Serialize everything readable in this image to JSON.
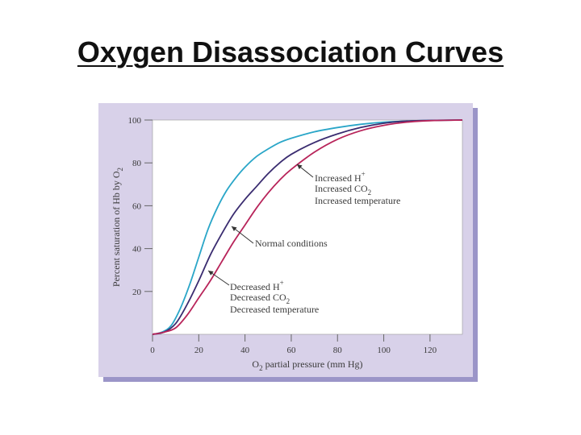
{
  "slide": {
    "title": "Oxygen Disassociation Curves"
  },
  "chart_data": {
    "type": "line",
    "xlabel_main": "O",
    "xlabel_sub": "2",
    "xlabel_rest": " partial pressure (mm Hg)",
    "ylabel_main": "Percent saturation of Hb by O",
    "ylabel_sub": "2",
    "xlim": [
      0,
      134
    ],
    "ylim": [
      0,
      100
    ],
    "xticks": [
      0,
      20,
      40,
      60,
      80,
      100,
      120
    ],
    "yticks": [
      20,
      40,
      60,
      80,
      100
    ],
    "grid": false,
    "series": [
      {
        "key": "left",
        "color": "#2aa6c8",
        "x": [
          0,
          4,
          8,
          12,
          16,
          20,
          24,
          28,
          32,
          36,
          40,
          45,
          50,
          55,
          60,
          70,
          80,
          90,
          100,
          110,
          120,
          134
        ],
        "y": [
          0,
          1,
          4,
          12,
          23,
          36,
          49,
          59,
          67,
          73,
          78,
          83,
          86.5,
          89.5,
          91.5,
          94.5,
          96.5,
          98,
          99,
          99.5,
          99.8,
          100
        ]
      },
      {
        "key": "normal",
        "color": "#3a2c70",
        "x": [
          0,
          5,
          10,
          15,
          20,
          25,
          30,
          35,
          40,
          45,
          50,
          55,
          60,
          70,
          80,
          90,
          100,
          110,
          120,
          134
        ],
        "y": [
          0,
          1,
          5,
          14,
          25,
          37,
          47,
          56,
          63,
          69,
          75,
          80,
          84,
          89.5,
          93.5,
          96.5,
          98.5,
          99.5,
          99.8,
          100
        ]
      },
      {
        "key": "right",
        "color": "#b8245a",
        "x": [
          0,
          5,
          10,
          15,
          20,
          25,
          30,
          35,
          40,
          45,
          50,
          55,
          60,
          70,
          80,
          90,
          100,
          110,
          120,
          134
        ],
        "y": [
          0,
          1,
          3,
          9,
          17,
          25,
          34,
          43,
          51,
          59,
          66,
          72,
          77,
          85,
          91,
          95,
          97.5,
          99,
          99.7,
          100
        ]
      }
    ],
    "annotations": {
      "increased": {
        "l1_main": "Increased H",
        "l1_sup": "+",
        "l2_main": "Increased CO",
        "l2_sub": "2",
        "l3": "Increased temperature"
      },
      "normal": {
        "text": "Normal conditions"
      },
      "decreased": {
        "l1_main": "Decreased H",
        "l1_sup": "+",
        "l2_main": "Decreased CO",
        "l2_sub": "2",
        "l3": "Decreased temperature"
      }
    },
    "colors": {
      "panel": "#d8d1e9",
      "panel_shadow": "#9b95c8",
      "plot_bg": "#ffffff",
      "axis": "#666666",
      "text": "#3b3b3b"
    }
  }
}
